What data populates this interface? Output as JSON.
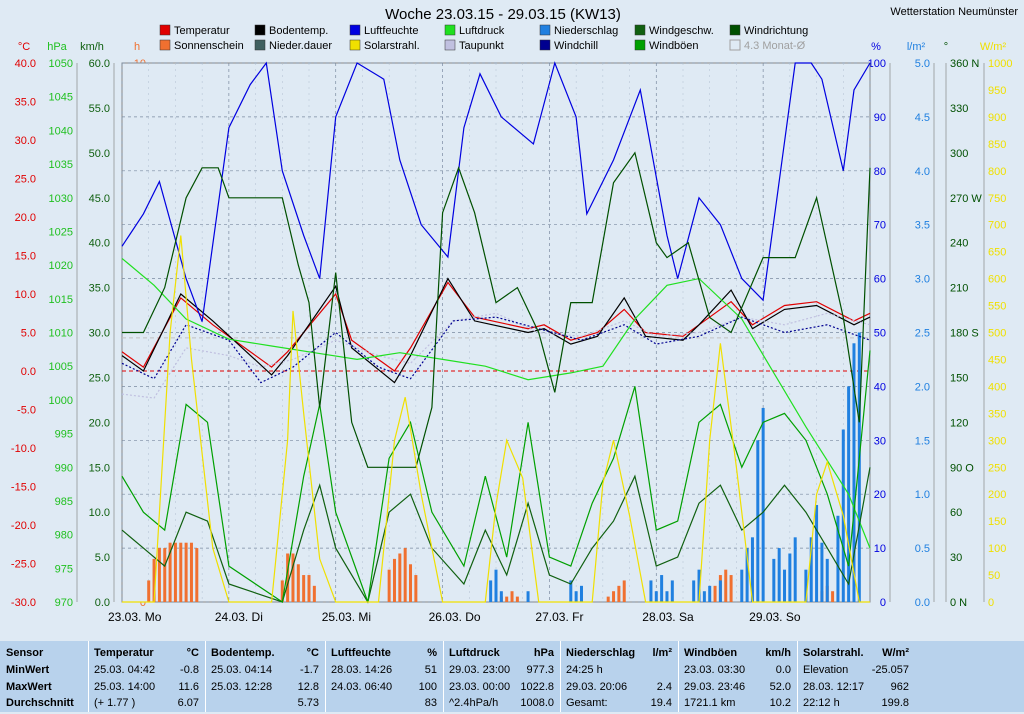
{
  "station": "Wetterstation Neumünster",
  "chart_data": {
    "type": "line",
    "title": "Woche 23.03.15 - 29.03.15 (KW13)",
    "x_labels": [
      "23.03.  Mo",
      "24.03.  Di",
      "25.03.  Mi",
      "26.03.  Do",
      "27.03.  Fr",
      "28.03.  Sa",
      "29.03.  So"
    ],
    "x_range_days": [
      0,
      7
    ],
    "legend": [
      {
        "name": "Temperatur",
        "color": "#e00000"
      },
      {
        "name": "Bodentemp.",
        "color": "#000000"
      },
      {
        "name": "Luftfeuchte",
        "color": "#0000e0"
      },
      {
        "name": "Luftdruck",
        "color": "#20e020"
      },
      {
        "name": "Niederschlag",
        "color": "#2080e0"
      },
      {
        "name": "Windgeschw.",
        "color": "#106010"
      },
      {
        "name": "Windrichtung",
        "color": "#005000"
      },
      {
        "name": "Sonnenschein",
        "color": "#f07030"
      },
      {
        "name": "Nieder.dauer",
        "color": "#406060"
      },
      {
        "name": "Solarstrahl.",
        "color": "#f0e000"
      },
      {
        "name": "Taupunkt",
        "color": "#c0c0e0"
      },
      {
        "name": "Windchill",
        "color": "#000090"
      },
      {
        "name": "Windböen",
        "color": "#00a000"
      },
      {
        "name": "4.3 Monat-Ø",
        "color": "#a0a0a0"
      }
    ],
    "axes": {
      "temp": {
        "unit": "°C",
        "range": [
          -30,
          40
        ],
        "ticks": [
          "40.0",
          "35.0",
          "30.0",
          "25.0",
          "20.0",
          "15.0",
          "10.0",
          "5.0",
          "0.0",
          "-5.0",
          "-10.0",
          "-15.0",
          "-20.0",
          "-25.0",
          "-30.0"
        ],
        "color": "#e00000"
      },
      "pressure": {
        "unit": "hPa",
        "range": [
          970,
          1050
        ],
        "ticks": [
          "1050",
          "1045",
          "1040",
          "1035",
          "1030",
          "1025",
          "1020",
          "1015",
          "1010",
          "1005",
          "1000",
          "995",
          "990",
          "985",
          "980",
          "975",
          "970"
        ],
        "color": "#20c020"
      },
      "wind": {
        "unit": "km/h",
        "range": [
          0,
          60
        ],
        "ticks": [
          "60.0",
          "55.0",
          "50.0",
          "45.0",
          "40.0",
          "35.0",
          "30.0",
          "25.0",
          "20.0",
          "15.0",
          "10.0",
          "5.0",
          "0.0"
        ],
        "color": "#106010"
      },
      "hours": {
        "unit": "h",
        "range": [
          0,
          10
        ],
        "ticks": [
          "10",
          "9",
          "8",
          "7",
          "6",
          "5",
          "4",
          "3",
          "2",
          "1",
          "0"
        ],
        "color": "#f07030"
      },
      "humidity": {
        "unit": "%",
        "range": [
          0,
          100
        ],
        "ticks": [
          "100",
          "90",
          "80",
          "70",
          "60",
          "50",
          "40",
          "30",
          "20",
          "10",
          "0"
        ],
        "color": "#0000e0"
      },
      "rain": {
        "unit": "l/m²",
        "range": [
          0,
          5
        ],
        "ticks": [
          "5.0",
          "4.5",
          "4.0",
          "3.5",
          "3.0",
          "2.5",
          "2.0",
          "1.5",
          "1.0",
          "0.5",
          "0.0"
        ],
        "color": "#2080e0"
      },
      "direction": {
        "unit": "°",
        "range": [
          0,
          360
        ],
        "ticks": [
          "360 N",
          "330",
          "300",
          "270 W",
          "240",
          "210",
          "180 S",
          "150",
          "120",
          "90  O",
          "60",
          "30",
          "0    N"
        ],
        "color": "#005000"
      },
      "solar": {
        "unit": "W/m²",
        "range": [
          0,
          1000
        ],
        "ticks": [
          "1000",
          "950",
          "900",
          "850",
          "800",
          "750",
          "700",
          "650",
          "600",
          "550",
          "500",
          "450",
          "400",
          "350",
          "300",
          "250",
          "200",
          "150",
          "100",
          "50",
          "0"
        ],
        "color": "#f0e000"
      }
    },
    "series": [
      {
        "name": "Temperatur",
        "axis": "temp",
        "x": [
          0,
          0.2,
          0.55,
          0.85,
          1.4,
          1.55,
          2.0,
          2.15,
          2.55,
          2.7,
          3.05,
          3.3,
          3.8,
          3.95,
          4.2,
          4.45,
          4.7,
          4.9,
          5.25,
          5.4,
          5.7,
          5.9,
          6.2,
          6.5,
          6.85,
          7
        ],
        "y": [
          2.5,
          0.5,
          9.5,
          6.0,
          0.5,
          2.5,
          10.0,
          4.0,
          0.0,
          3.0,
          11.5,
          7.0,
          5.5,
          6.0,
          4.0,
          5.0,
          8.0,
          5.0,
          4.5,
          6.0,
          9.0,
          6.0,
          8.5,
          9.0,
          6.5,
          7.5
        ]
      },
      {
        "name": "Bodentemp.",
        "axis": "temp",
        "x": [
          0,
          0.2,
          0.55,
          0.85,
          1.4,
          1.55,
          2.0,
          2.15,
          2.55,
          2.7,
          3.05,
          3.3,
          3.8,
          3.95,
          4.2,
          4.45,
          4.7,
          4.9,
          5.25,
          5.4,
          5.7,
          5.9,
          6.2,
          6.5,
          6.85,
          7
        ],
        "y": [
          2.0,
          0.0,
          10.0,
          6.5,
          -0.5,
          2.0,
          11.0,
          3.0,
          -1.5,
          2.0,
          12.0,
          6.5,
          5.0,
          5.5,
          3.5,
          4.5,
          9.5,
          4.5,
          4.0,
          6.0,
          10.5,
          5.5,
          8.0,
          8.5,
          6.0,
          7.0
        ]
      },
      {
        "name": "Taupunkt",
        "axis": "temp",
        "x": [
          0,
          0.3,
          0.6,
          1.0,
          1.3,
          1.6,
          2.0,
          2.4,
          2.7,
          3.1,
          3.5,
          3.9,
          4.3,
          4.7,
          5.0,
          5.4,
          5.8,
          6.2,
          6.6,
          7
        ],
        "y": [
          -3.0,
          -3.5,
          3.0,
          2.0,
          0.5,
          1.5,
          4.0,
          2.0,
          1.0,
          6.5,
          7.5,
          5.0,
          4.5,
          6.5,
          4.5,
          5.0,
          7.0,
          6.0,
          7.5,
          6.0
        ]
      },
      {
        "name": "Windchill",
        "axis": "temp",
        "x": [
          0,
          0.3,
          0.6,
          1.0,
          1.3,
          1.6,
          2.0,
          2.4,
          2.7,
          3.1,
          3.5,
          3.9,
          4.3,
          4.7,
          5.0,
          5.4,
          5.8,
          6.2,
          6.6,
          7
        ],
        "y": [
          1.0,
          -1.0,
          6.0,
          4.0,
          -1.5,
          0.5,
          5.0,
          0.5,
          -1.0,
          6.5,
          7.0,
          5.5,
          4.0,
          6.0,
          3.5,
          4.5,
          7.0,
          5.0,
          6.0,
          4.0
        ]
      },
      {
        "name": "Luftfeuchte",
        "axis": "humidity",
        "x": [
          0,
          0.2,
          0.35,
          0.6,
          0.75,
          1.0,
          1.2,
          1.35,
          1.5,
          1.7,
          1.85,
          2.0,
          2.2,
          2.45,
          2.6,
          2.8,
          3.05,
          3.2,
          3.35,
          3.55,
          3.85,
          4.05,
          4.25,
          4.35,
          4.6,
          4.85,
          5.1,
          5.2,
          5.4,
          5.6,
          5.8,
          6.0,
          6.3,
          6.45,
          6.55,
          6.75,
          6.85,
          7
        ],
        "y": [
          66,
          72,
          78,
          60,
          52,
          88,
          96,
          100,
          80,
          68,
          60,
          90,
          100,
          97,
          82,
          70,
          64,
          88,
          98,
          90,
          85,
          100,
          90,
          72,
          82,
          95,
          68,
          60,
          75,
          70,
          60,
          56,
          100,
          100,
          97,
          80,
          95,
          100
        ]
      },
      {
        "name": "Luftdruck",
        "axis": "pressure",
        "x": [
          0,
          0.3,
          0.6,
          1.0,
          1.4,
          1.8,
          2.2,
          2.6,
          3.0,
          3.4,
          3.8,
          4.2,
          4.5,
          4.8,
          5.1,
          5.4,
          5.8,
          6.1,
          6.4,
          6.8,
          7
        ],
        "y": [
          1021,
          1017,
          1012,
          1009,
          1008,
          1007,
          1006,
          1007,
          1006,
          1005,
          1003,
          1004,
          1005,
          1012,
          1017,
          1018,
          1012,
          1004,
          996,
          986,
          978
        ]
      },
      {
        "name": "Windgeschw.",
        "axis": "wind",
        "x": [
          0,
          0.2,
          0.4,
          0.6,
          0.8,
          1.0,
          1.5,
          1.7,
          1.85,
          2.0,
          2.3,
          2.5,
          2.7,
          2.9,
          3.2,
          3.4,
          3.6,
          3.8,
          4.0,
          4.2,
          4.4,
          4.6,
          4.8,
          5.0,
          5.2,
          5.4,
          5.6,
          5.8,
          6.0,
          6.2,
          6.4,
          6.6,
          6.8,
          7
        ],
        "y": [
          8,
          6,
          4,
          10,
          9,
          2,
          0,
          8,
          13,
          6,
          0,
          10,
          12,
          6,
          2,
          8,
          3,
          11,
          3,
          2,
          6,
          9,
          14,
          4,
          5,
          11,
          13,
          8,
          10,
          13,
          10,
          6,
          2,
          15
        ]
      },
      {
        "name": "Windböen",
        "axis": "wind",
        "x": [
          0,
          0.2,
          0.4,
          0.6,
          0.8,
          1.0,
          1.5,
          1.7,
          1.85,
          2.0,
          2.3,
          2.5,
          2.7,
          2.9,
          3.2,
          3.4,
          3.6,
          3.8,
          4.0,
          4.2,
          4.4,
          4.6,
          4.8,
          5.0,
          5.2,
          5.4,
          5.6,
          5.8,
          6.0,
          6.2,
          6.4,
          6.6,
          6.8,
          7
        ],
        "y": [
          14,
          10,
          8,
          22,
          20,
          4,
          0,
          14,
          22,
          10,
          0,
          16,
          20,
          10,
          4,
          14,
          5,
          20,
          5,
          4,
          11,
          16,
          24,
          8,
          9,
          20,
          22,
          15,
          20,
          21,
          18,
          12,
          4,
          28
        ]
      },
      {
        "name": "Windrichtung",
        "axis": "direction",
        "x": [
          0,
          0.2,
          0.4,
          0.6,
          0.75,
          0.9,
          1.0,
          1.5,
          1.65,
          1.75,
          1.85,
          2.0,
          2.15,
          2.3,
          2.6,
          2.75,
          2.9,
          3.0,
          3.15,
          3.3,
          3.5,
          3.7,
          3.9,
          4.05,
          4.2,
          4.4,
          4.6,
          4.8,
          5.0,
          5.1,
          5.3,
          5.5,
          5.7,
          6.0,
          6.3,
          6.5,
          6.75,
          6.9,
          7
        ],
        "y": [
          180,
          180,
          210,
          270,
          290,
          290,
          270,
          270,
          225,
          200,
          130,
          220,
          120,
          90,
          90,
          90,
          130,
          260,
          290,
          260,
          200,
          210,
          180,
          140,
          200,
          200,
          280,
          300,
          240,
          230,
          240,
          190,
          180,
          230,
          230,
          270,
          190,
          120,
          290
        ]
      },
      {
        "name": "Solarstrahl.",
        "axis": "solar",
        "x": [
          0,
          0.3,
          0.45,
          0.55,
          0.65,
          0.85,
          1.0,
          1.4,
          1.55,
          1.6,
          1.7,
          1.85,
          2.0,
          2.4,
          2.55,
          2.65,
          2.8,
          3.0,
          3.4,
          3.5,
          3.6,
          3.75,
          3.9,
          4.4,
          4.5,
          4.6,
          4.75,
          4.9,
          5.4,
          5.5,
          5.6,
          5.75,
          5.9,
          6.4,
          6.5,
          6.6,
          6.75,
          6.9,
          7
        ],
        "y": [
          0,
          0,
          500,
          680,
          450,
          100,
          0,
          0,
          300,
          540,
          350,
          80,
          0,
          0,
          300,
          380,
          200,
          0,
          0,
          180,
          300,
          230,
          0,
          0,
          220,
          300,
          160,
          0,
          0,
          300,
          480,
          250,
          0,
          0,
          200,
          260,
          160,
          0,
          0
        ]
      }
    ],
    "bars": [
      {
        "name": "Sonnenschein",
        "axis": "hours",
        "x": [
          0.25,
          0.3,
          0.35,
          0.4,
          0.45,
          0.5,
          0.55,
          0.6,
          0.65,
          0.7,
          1.5,
          1.55,
          1.6,
          1.65,
          1.7,
          1.75,
          1.8,
          2.5,
          2.55,
          2.6,
          2.65,
          2.7,
          2.75,
          3.55,
          3.6,
          3.65,
          3.7,
          4.55,
          4.6,
          4.65,
          4.7,
          5.55,
          5.6,
          5.65,
          5.7,
          6.55,
          6.6,
          6.65
        ],
        "y": [
          0.4,
          0.8,
          1.0,
          1.0,
          1.1,
          1.1,
          1.1,
          1.1,
          1.1,
          1.0,
          0.4,
          0.9,
          0.9,
          0.7,
          0.5,
          0.5,
          0.3,
          0.6,
          0.8,
          0.9,
          1.0,
          0.7,
          0.5,
          0.1,
          0.1,
          0.2,
          0.1,
          0.1,
          0.2,
          0.3,
          0.4,
          0.3,
          0.5,
          0.6,
          0.5,
          0.2,
          0.3,
          0.2
        ]
      },
      {
        "name": "Niederschlag",
        "axis": "rain",
        "x": [
          3.45,
          3.5,
          3.55,
          3.8,
          4.2,
          4.25,
          4.3,
          4.95,
          5.0,
          5.05,
          5.1,
          5.15,
          5.35,
          5.4,
          5.45,
          5.5,
          5.6,
          5.8,
          5.85,
          5.9,
          5.95,
          6.0,
          6.1,
          6.15,
          6.2,
          6.25,
          6.3,
          6.4,
          6.45,
          6.5,
          6.55,
          6.6,
          6.7,
          6.75,
          6.8,
          6.85,
          6.9
        ],
        "y": [
          0.2,
          0.3,
          0.1,
          0.1,
          0.2,
          0.1,
          0.15,
          0.2,
          0.1,
          0.25,
          0.1,
          0.2,
          0.2,
          0.3,
          0.1,
          0.15,
          0.2,
          0.3,
          0.5,
          0.6,
          1.5,
          1.8,
          0.4,
          0.5,
          0.3,
          0.45,
          0.6,
          0.3,
          0.6,
          0.9,
          0.55,
          0.4,
          0.8,
          1.6,
          2.0,
          2.4,
          2.5
        ]
      }
    ],
    "reference_lines": [
      {
        "axis": "temp",
        "value": 0,
        "color": "#e00000",
        "style": "dashed"
      },
      {
        "axis": "temp",
        "value": 4.3,
        "color": "#c0c0c0",
        "style": "dashed"
      }
    ]
  },
  "table": {
    "columns": [
      {
        "header": "Sensor",
        "rows": [
          "MinWert",
          "MaxWert",
          "Durchschnitt"
        ]
      },
      {
        "header": "Temperatur",
        "unit": "°C",
        "rows": [
          [
            "25.03.  04:42",
            "-0.8"
          ],
          [
            "25.03.  14:00",
            "11.6"
          ],
          [
            "(+ 1.77 )",
            "6.07"
          ]
        ]
      },
      {
        "header": "Bodentemp.",
        "unit": "°C",
        "rows": [
          [
            "25.03.  04:14",
            "-1.7"
          ],
          [
            "25.03.  12:28",
            "12.8"
          ],
          [
            "",
            "5.73"
          ]
        ]
      },
      {
        "header": "Luftfeuchte",
        "unit": "%",
        "rows": [
          [
            "28.03.  14:26",
            "51"
          ],
          [
            "24.03.  06:40",
            "100"
          ],
          [
            "",
            "83"
          ]
        ]
      },
      {
        "header": "Luftdruck",
        "unit": "hPa",
        "rows": [
          [
            "29.03.  23:00",
            "977.3"
          ],
          [
            "23.03.  00:00",
            "1022.8"
          ],
          [
            "^2.4hPa/h",
            "1008.0"
          ]
        ]
      },
      {
        "header": "Niederschlag",
        "unit": "l/m²",
        "rows": [
          [
            "24:25 h",
            ""
          ],
          [
            "29.03.  20:06",
            "2.4"
          ],
          [
            "Gesamt:",
            "19.4"
          ]
        ]
      },
      {
        "header": "Windböen",
        "unit": "km/h",
        "rows": [
          [
            "23.03.  03:30",
            "0.0"
          ],
          [
            "29.03.  23:46",
            "52.0"
          ],
          [
            "1721.1 km",
            "10.2"
          ]
        ]
      },
      {
        "header": "Solarstrahl.",
        "unit": "W/m²",
        "rows": [
          [
            "Elevation",
            "-25.057"
          ],
          [
            "28.03.  12:17",
            "962"
          ],
          [
            "22:12 h",
            "199.8"
          ]
        ]
      }
    ]
  }
}
